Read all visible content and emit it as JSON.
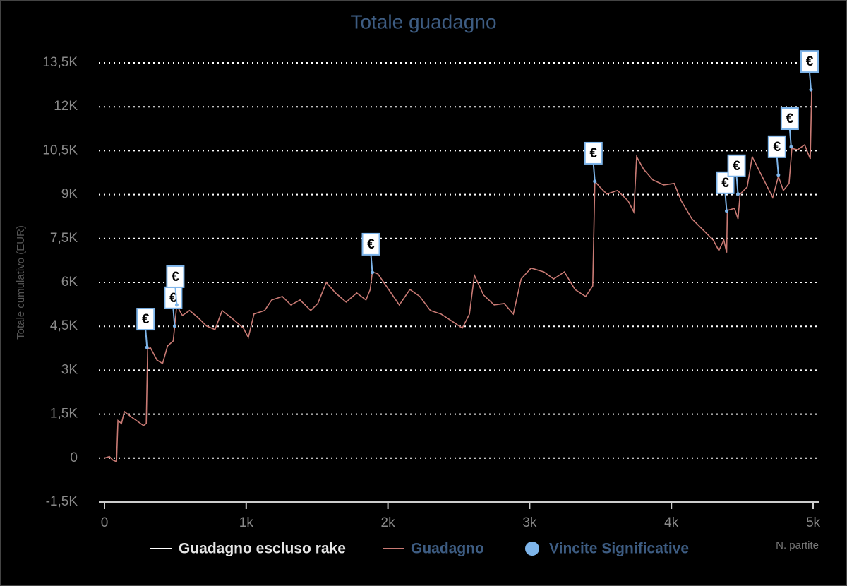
{
  "chart_data": {
    "type": "line",
    "title": "Totale guadagno",
    "y_label": "Totale cumulativo (EUR)",
    "x_label": "N. partite",
    "xlim": [
      0,
      5000
    ],
    "ylim": [
      -1500,
      13500
    ],
    "xticks": [
      0,
      {
        "value": 1000,
        "label": "1k"
      },
      {
        "value": 2000,
        "label": "2k"
      },
      {
        "value": 3000,
        "label": "3k"
      },
      {
        "value": 4000,
        "label": "4k"
      },
      {
        "value": 5000,
        "label": "5k"
      }
    ],
    "yticks": [
      {
        "value": -1500,
        "label": "-1,5K"
      },
      0,
      {
        "value": 1500,
        "label": "1,5K"
      },
      {
        "value": 3000,
        "label": "3K"
      },
      {
        "value": 4500,
        "label": "4,5K"
      },
      {
        "value": 6000,
        "label": "6K"
      },
      {
        "value": 7500,
        "label": "7,5K"
      },
      {
        "value": 9000,
        "label": "9K"
      },
      {
        "value": 10500,
        "label": "10,5K"
      },
      {
        "value": 12000,
        "label": "12K"
      },
      {
        "value": 13500,
        "label": "13,5K"
      }
    ],
    "grid": true,
    "x": [
      0,
      35,
      60,
      85,
      95,
      120,
      140,
      185,
      235,
      275,
      295,
      305,
      325,
      370,
      410,
      445,
      485,
      495,
      510,
      550,
      600,
      660,
      720,
      780,
      830,
      905,
      980,
      1015,
      1055,
      1130,
      1180,
      1255,
      1315,
      1380,
      1455,
      1505,
      1565,
      1630,
      1705,
      1780,
      1845,
      1875,
      1890,
      1930,
      2005,
      2080,
      2155,
      2225,
      2300,
      2375,
      2450,
      2525,
      2575,
      2610,
      2675,
      2750,
      2820,
      2885,
      2940,
      3010,
      3100,
      3170,
      3245,
      3320,
      3395,
      3445,
      3460,
      3495,
      3545,
      3620,
      3695,
      3735,
      3755,
      3805,
      3870,
      3945,
      4020,
      4070,
      4145,
      4220,
      4295,
      4335,
      4370,
      4390,
      4395,
      4445,
      4470,
      4485,
      4535,
      4570,
      4615,
      4665,
      4715,
      4755,
      4790,
      4830,
      4850,
      4890,
      4940,
      4980,
      4990
    ],
    "series": [
      {
        "name": "Guadagno escluso rake",
        "color": "#ffffff",
        "values": [
          null,
          null,
          null,
          null,
          null,
          null,
          null,
          null,
          null,
          null,
          null,
          null,
          null,
          null,
          null,
          null,
          null,
          null,
          null,
          null,
          null,
          null,
          null,
          null,
          null,
          null,
          null,
          null,
          null,
          null,
          null,
          null,
          null,
          null,
          null,
          null,
          null,
          null,
          null,
          null,
          null,
          null,
          null,
          null,
          null,
          null,
          null,
          null,
          null,
          null,
          null,
          null,
          null,
          null,
          null,
          null,
          null,
          null,
          null,
          null,
          null,
          null,
          null,
          null,
          null,
          null,
          null,
          null,
          null,
          null,
          null,
          null,
          null,
          null,
          null,
          null,
          null,
          null,
          null,
          null,
          null,
          null,
          null,
          null,
          null,
          null,
          null,
          null,
          null,
          null,
          null,
          null,
          null,
          null,
          null,
          null,
          null,
          null,
          null,
          null,
          null
        ]
      },
      {
        "name": "Guadagno",
        "color": "#c97a74",
        "values": [
          0,
          50,
          -70,
          -120,
          1280,
          1180,
          1590,
          1420,
          1250,
          1110,
          1180,
          3740,
          3760,
          3350,
          3230,
          3830,
          4000,
          4480,
          5210,
          4870,
          5040,
          4800,
          4510,
          4390,
          5040,
          4750,
          4440,
          4120,
          4920,
          5040,
          5400,
          5520,
          5230,
          5400,
          5040,
          5280,
          6000,
          5640,
          5330,
          5640,
          5400,
          5760,
          6360,
          6290,
          5760,
          5230,
          5760,
          5520,
          5040,
          4920,
          4680,
          4440,
          4920,
          6240,
          5570,
          5230,
          5280,
          4920,
          6120,
          6490,
          6360,
          6120,
          6360,
          5760,
          5520,
          5880,
          9450,
          9260,
          9020,
          9140,
          8780,
          8410,
          10290,
          9860,
          9500,
          9330,
          9380,
          8780,
          8170,
          7810,
          7450,
          7090,
          7450,
          7020,
          8460,
          8530,
          8170,
          9020,
          9260,
          10290,
          9860,
          9380,
          8900,
          9620,
          9140,
          9380,
          10580,
          10530,
          10700,
          10220,
          12580
        ]
      },
      {
        "name": "Vincite Significative",
        "color": "#7eb5ea",
        "type": "scatter",
        "x": [
          300,
          495,
          510,
          1890,
          3460,
          4390,
          4470,
          4755,
          4845,
          4985
        ],
        "values": [
          3780,
          4510,
          5230,
          6340,
          9450,
          8440,
          9020,
          9670,
          10630,
          12580
        ],
        "value_labels": [
          "€",
          "€",
          "€",
          "€",
          "€",
          "€",
          "€",
          "€",
          "€",
          "€"
        ]
      }
    ]
  }
}
